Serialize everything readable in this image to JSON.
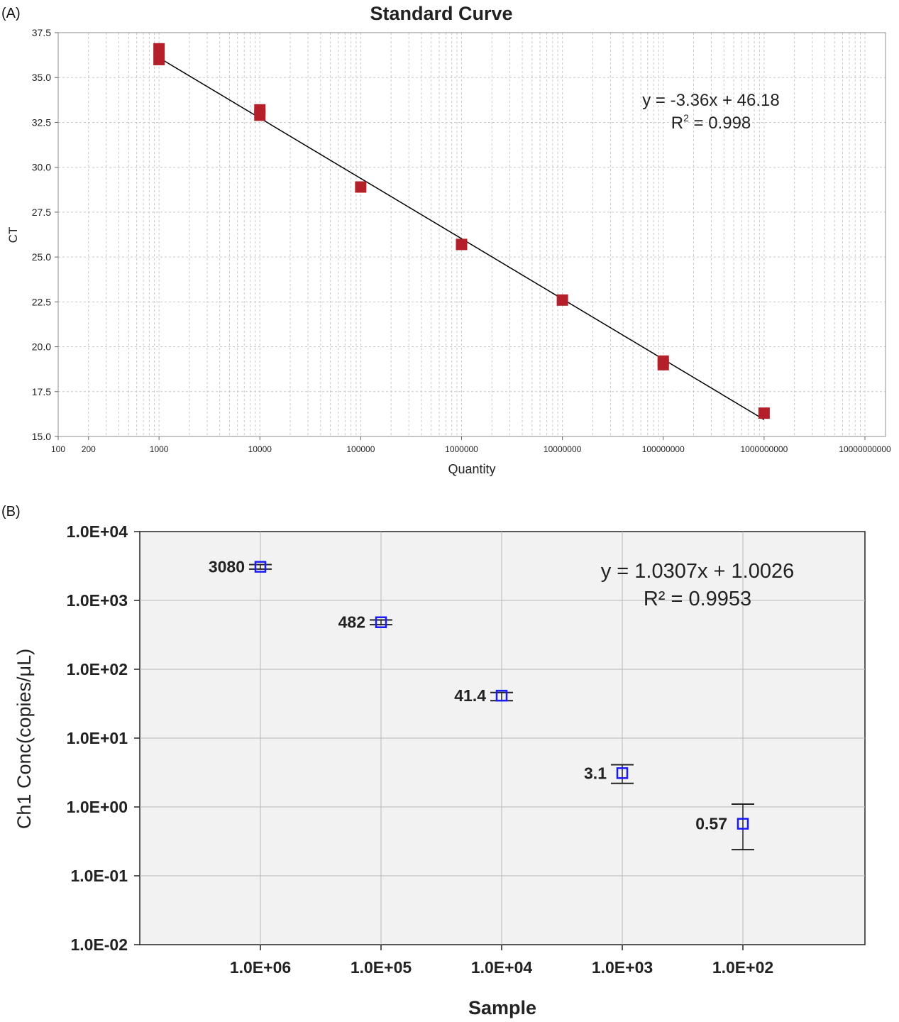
{
  "panels": [
    {
      "label": "(A)"
    },
    {
      "label": "(B)"
    }
  ],
  "chart_data": [
    {
      "type": "scatter",
      "title": "Standard Curve",
      "xlabel": "Quantity",
      "ylabel": "CT",
      "x_scale": "log",
      "xlim": [
        100,
        10000000000
      ],
      "ylim": [
        15.0,
        37.5
      ],
      "xticks": [
        "100",
        "200",
        "1000",
        "10000",
        "100000",
        "1000000",
        "10000000",
        "100000000",
        "1000000000",
        "10000000000"
      ],
      "yticks": [
        "15.0",
        "17.5",
        "20.0",
        "22.5",
        "25.0",
        "27.5",
        "30.0",
        "32.5",
        "35.0",
        "37.5"
      ],
      "grid": true,
      "series": [
        {
          "x": [
            1000,
            1000,
            10000,
            10000,
            100000,
            1000000,
            10000000,
            100000000,
            100000000,
            1000000000
          ],
          "y": [
            36.6,
            36.0,
            33.2,
            32.9,
            28.9,
            25.7,
            22.6,
            19.2,
            19.0,
            16.3
          ],
          "color": "#b3202a",
          "marker": "square"
        }
      ],
      "fit_line": {
        "slope": -3.36,
        "intercept": 46.18,
        "x_from": 1000,
        "x_to": 1000000000,
        "color": "#000000"
      },
      "equation": "y = -3.36x + 46.18",
      "r2_prefix": "R",
      "r2_sup": "2",
      "r2_value": " = 0.998"
    },
    {
      "type": "scatter",
      "title": "",
      "xlabel": "Sample",
      "ylabel": "Ch1 Conc(copies/μL)",
      "y_scale": "log",
      "ylim": [
        0.01,
        10000
      ],
      "yticks": [
        "1.0E+04",
        "1.0E+03",
        "1.0E+02",
        "1.0E+01",
        "1.0E+00",
        "1.0E-01",
        "1.0E-02"
      ],
      "categories": [
        "1.0E+06",
        "1.0E+05",
        "1.0E+04",
        "1.0E+03",
        "1.0E+02"
      ],
      "values": [
        3080,
        482,
        41.4,
        3.1,
        0.57
      ],
      "point_labels": [
        "3080",
        "482",
        "41.4",
        "3.1",
        "0.57"
      ],
      "error_bars": [
        [
          2850,
          3320
        ],
        [
          445,
          520
        ],
        [
          35,
          46
        ],
        [
          2.2,
          4.1
        ],
        [
          0.24,
          1.1
        ]
      ],
      "grid": true,
      "marker_color": "#1a1aff",
      "equation": "y = 1.0307x + 1.0026",
      "r2_text": "R² = 0.9953"
    }
  ]
}
